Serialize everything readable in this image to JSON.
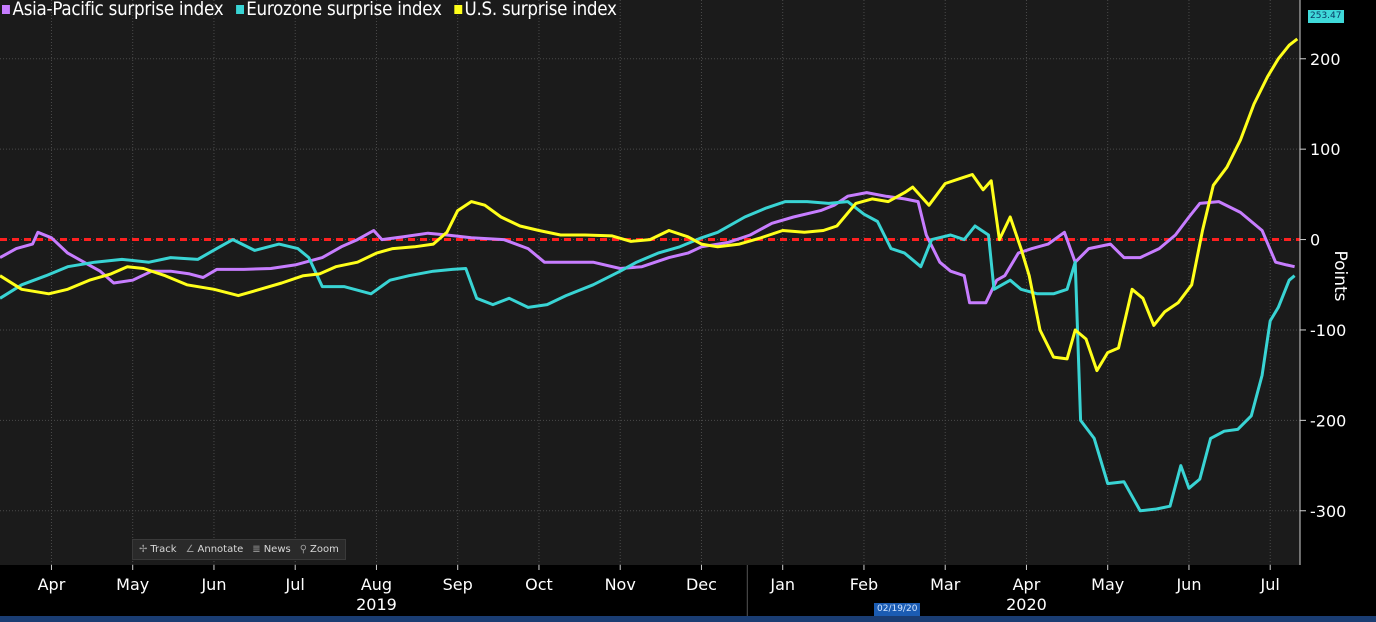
{
  "legend": [
    {
      "label": "Asia-Pacific surprise index",
      "color": "#c77dff"
    },
    {
      "label": "Eurozone surprise index",
      "color": "#39d4d4"
    },
    {
      "label": "U.S. surprise index",
      "color": "#ffff1a"
    }
  ],
  "toolbar": {
    "track": "Track",
    "annotate": "Annotate",
    "news": "News",
    "zoom": "Zoom"
  },
  "current_value_badge": "253.47",
  "date_badge": "02/19/20",
  "chart_data": {
    "type": "line",
    "ylabel": "Points",
    "ylim": [
      -360,
      265
    ],
    "yticks": [
      200,
      100,
      0,
      -100,
      -200,
      -300
    ],
    "ytick_labels": [
      "200",
      "100",
      "0",
      "-100",
      "-200",
      "-300"
    ],
    "x_range": [
      "2019-03-20",
      "2020-07-12"
    ],
    "month_ticks": [
      {
        "label": "Apr",
        "date": "2019-04-08"
      },
      {
        "label": "May",
        "date": "2019-05-08"
      },
      {
        "label": "Jun",
        "date": "2019-06-07"
      },
      {
        "label": "Jul",
        "date": "2019-07-07"
      },
      {
        "label": "Aug",
        "date": "2019-08-06"
      },
      {
        "label": "Sep",
        "date": "2019-09-05"
      },
      {
        "label": "Oct",
        "date": "2019-10-05"
      },
      {
        "label": "Nov",
        "date": "2019-11-04"
      },
      {
        "label": "Dec",
        "date": "2019-12-04"
      },
      {
        "label": "Jan",
        "date": "2020-01-03"
      },
      {
        "label": "Feb",
        "date": "2020-02-02"
      },
      {
        "label": "Mar",
        "date": "2020-03-03"
      },
      {
        "label": "Apr",
        "date": "2020-04-02"
      },
      {
        "label": "May",
        "date": "2020-05-02"
      },
      {
        "label": "Jun",
        "date": "2020-06-01"
      },
      {
        "label": "Jul",
        "date": "2020-07-01"
      }
    ],
    "year_labels": [
      {
        "label": "2019",
        "date": "2019-08-06"
      },
      {
        "label": "2020",
        "date": "2020-04-02"
      }
    ],
    "reference_line": {
      "y": 0,
      "color": "#ff2020",
      "style": "dashed"
    },
    "grid": true,
    "series": [
      {
        "name": "Asia-Pacific surprise index",
        "color": "#c77dff",
        "points": [
          [
            "2019-03-20",
            -20
          ],
          [
            "2019-03-26",
            -10
          ],
          [
            "2019-04-01",
            -5
          ],
          [
            "2019-04-03",
            8
          ],
          [
            "2019-04-08",
            2
          ],
          [
            "2019-04-14",
            -15
          ],
          [
            "2019-04-20",
            -25
          ],
          [
            "2019-04-26",
            -35
          ],
          [
            "2019-05-01",
            -48
          ],
          [
            "2019-05-08",
            -45
          ],
          [
            "2019-05-15",
            -35
          ],
          [
            "2019-05-22",
            -35
          ],
          [
            "2019-05-29",
            -38
          ],
          [
            "2019-06-03",
            -42
          ],
          [
            "2019-06-08",
            -33
          ],
          [
            "2019-06-18",
            -33
          ],
          [
            "2019-06-28",
            -32
          ],
          [
            "2019-07-07",
            -28
          ],
          [
            "2019-07-17",
            -20
          ],
          [
            "2019-07-24",
            -8
          ],
          [
            "2019-07-30",
            0
          ],
          [
            "2019-08-05",
            10
          ],
          [
            "2019-08-08",
            0
          ],
          [
            "2019-08-16",
            3
          ],
          [
            "2019-08-25",
            7
          ],
          [
            "2019-09-01",
            5
          ],
          [
            "2019-09-10",
            2
          ],
          [
            "2019-09-22",
            0
          ],
          [
            "2019-10-01",
            -10
          ],
          [
            "2019-10-07",
            -25
          ],
          [
            "2019-10-15",
            -25
          ],
          [
            "2019-10-25",
            -25
          ],
          [
            "2019-11-04",
            -32
          ],
          [
            "2019-11-12",
            -30
          ],
          [
            "2019-11-22",
            -20
          ],
          [
            "2019-11-29",
            -15
          ],
          [
            "2019-12-04",
            -8
          ],
          [
            "2019-12-14",
            -3
          ],
          [
            "2019-12-22",
            5
          ],
          [
            "2019-12-30",
            18
          ],
          [
            "2020-01-07",
            25
          ],
          [
            "2020-01-17",
            32
          ],
          [
            "2020-01-22",
            38
          ],
          [
            "2020-01-27",
            48
          ],
          [
            "2020-02-03",
            52
          ],
          [
            "2020-02-10",
            48
          ],
          [
            "2020-02-17",
            45
          ],
          [
            "2020-02-22",
            42
          ],
          [
            "2020-02-25",
            5
          ],
          [
            "2020-03-01",
            -25
          ],
          [
            "2020-03-05",
            -35
          ],
          [
            "2020-03-10",
            -40
          ],
          [
            "2020-03-12",
            -70
          ],
          [
            "2020-03-18",
            -70
          ],
          [
            "2020-03-22",
            -45
          ],
          [
            "2020-03-25",
            -40
          ],
          [
            "2020-03-30",
            -15
          ],
          [
            "2020-04-04",
            -10
          ],
          [
            "2020-04-10",
            -5
          ],
          [
            "2020-04-16",
            8
          ],
          [
            "2020-04-20",
            -25
          ],
          [
            "2020-04-25",
            -10
          ],
          [
            "2020-05-03",
            -5
          ],
          [
            "2020-05-08",
            -20
          ],
          [
            "2020-05-14",
            -20
          ],
          [
            "2020-05-21",
            -10
          ],
          [
            "2020-05-27",
            5
          ],
          [
            "2020-06-01",
            25
          ],
          [
            "2020-06-05",
            40
          ],
          [
            "2020-06-12",
            42
          ],
          [
            "2020-06-20",
            30
          ],
          [
            "2020-06-28",
            10
          ],
          [
            "2020-07-03",
            -25
          ],
          [
            "2020-07-07",
            -28
          ],
          [
            "2020-07-10",
            -30
          ]
        ]
      },
      {
        "name": "Eurozone surprise index",
        "color": "#39d4d4",
        "points": [
          [
            "2019-03-20",
            -65
          ],
          [
            "2019-03-28",
            -50
          ],
          [
            "2019-04-06",
            -40
          ],
          [
            "2019-04-14",
            -30
          ],
          [
            "2019-04-24",
            -25
          ],
          [
            "2019-05-04",
            -22
          ],
          [
            "2019-05-14",
            -25
          ],
          [
            "2019-05-22",
            -20
          ],
          [
            "2019-06-01",
            -22
          ],
          [
            "2019-06-08",
            -10
          ],
          [
            "2019-06-14",
            0
          ],
          [
            "2019-06-22",
            -12
          ],
          [
            "2019-07-01",
            -5
          ],
          [
            "2019-07-08",
            -10
          ],
          [
            "2019-07-12",
            -20
          ],
          [
            "2019-07-17",
            -52
          ],
          [
            "2019-07-25",
            -52
          ],
          [
            "2019-08-04",
            -60
          ],
          [
            "2019-08-11",
            -45
          ],
          [
            "2019-08-18",
            -40
          ],
          [
            "2019-08-27",
            -35
          ],
          [
            "2019-09-03",
            -33
          ],
          [
            "2019-09-08",
            -32
          ],
          [
            "2019-09-12",
            -65
          ],
          [
            "2019-09-18",
            -72
          ],
          [
            "2019-09-24",
            -65
          ],
          [
            "2019-10-01",
            -75
          ],
          [
            "2019-10-08",
            -72
          ],
          [
            "2019-10-15",
            -62
          ],
          [
            "2019-10-25",
            -50
          ],
          [
            "2019-11-04",
            -35
          ],
          [
            "2019-11-10",
            -25
          ],
          [
            "2019-11-18",
            -15
          ],
          [
            "2019-11-26",
            -8
          ],
          [
            "2019-12-04",
            2
          ],
          [
            "2019-12-10",
            8
          ],
          [
            "2019-12-20",
            25
          ],
          [
            "2019-12-28",
            35
          ],
          [
            "2020-01-04",
            42
          ],
          [
            "2020-01-12",
            42
          ],
          [
            "2020-01-20",
            40
          ],
          [
            "2020-01-27",
            42
          ],
          [
            "2020-02-02",
            28
          ],
          [
            "2020-02-07",
            20
          ],
          [
            "2020-02-12",
            -10
          ],
          [
            "2020-02-17",
            -15
          ],
          [
            "2020-02-23",
            -30
          ],
          [
            "2020-02-27",
            0
          ],
          [
            "2020-03-05",
            5
          ],
          [
            "2020-03-10",
            0
          ],
          [
            "2020-03-14",
            15
          ],
          [
            "2020-03-19",
            5
          ],
          [
            "2020-03-21",
            -55
          ],
          [
            "2020-03-27",
            -45
          ],
          [
            "2020-03-31",
            -55
          ],
          [
            "2020-04-06",
            -60
          ],
          [
            "2020-04-12",
            -60
          ],
          [
            "2020-04-17",
            -55
          ],
          [
            "2020-04-20",
            -25
          ],
          [
            "2020-04-22",
            -200
          ],
          [
            "2020-04-27",
            -220
          ],
          [
            "2020-05-02",
            -270
          ],
          [
            "2020-05-08",
            -268
          ],
          [
            "2020-05-14",
            -300
          ],
          [
            "2020-05-20",
            -298
          ],
          [
            "2020-05-25",
            -295
          ],
          [
            "2020-05-29",
            -250
          ],
          [
            "2020-06-01",
            -275
          ],
          [
            "2020-06-05",
            -265
          ],
          [
            "2020-06-09",
            -220
          ],
          [
            "2020-06-14",
            -212
          ],
          [
            "2020-06-19",
            -210
          ],
          [
            "2020-06-24",
            -195
          ],
          [
            "2020-06-28",
            -150
          ],
          [
            "2020-07-01",
            -90
          ],
          [
            "2020-07-04",
            -75
          ],
          [
            "2020-07-08",
            -45
          ],
          [
            "2020-07-10",
            -40
          ]
        ]
      },
      {
        "name": "U.S. surprise index",
        "color": "#ffff1a",
        "points": [
          [
            "2019-03-20",
            -40
          ],
          [
            "2019-03-28",
            -55
          ],
          [
            "2019-04-07",
            -60
          ],
          [
            "2019-04-14",
            -55
          ],
          [
            "2019-04-22",
            -45
          ],
          [
            "2019-04-30",
            -38
          ],
          [
            "2019-05-06",
            -30
          ],
          [
            "2019-05-12",
            -32
          ],
          [
            "2019-05-20",
            -40
          ],
          [
            "2019-05-28",
            -50
          ],
          [
            "2019-06-07",
            -55
          ],
          [
            "2019-06-16",
            -62
          ],
          [
            "2019-06-24",
            -55
          ],
          [
            "2019-07-02",
            -48
          ],
          [
            "2019-07-10",
            -40
          ],
          [
            "2019-07-16",
            -38
          ],
          [
            "2019-07-22",
            -30
          ],
          [
            "2019-07-30",
            -25
          ],
          [
            "2019-08-06",
            -15
          ],
          [
            "2019-08-12",
            -10
          ],
          [
            "2019-08-20",
            -8
          ],
          [
            "2019-08-27",
            -5
          ],
          [
            "2019-09-01",
            8
          ],
          [
            "2019-09-05",
            32
          ],
          [
            "2019-09-10",
            42
          ],
          [
            "2019-09-15",
            38
          ],
          [
            "2019-09-21",
            25
          ],
          [
            "2019-09-28",
            15
          ],
          [
            "2019-10-05",
            10
          ],
          [
            "2019-10-13",
            5
          ],
          [
            "2019-10-22",
            5
          ],
          [
            "2019-11-01",
            4
          ],
          [
            "2019-11-08",
            -2
          ],
          [
            "2019-11-15",
            0
          ],
          [
            "2019-11-22",
            10
          ],
          [
            "2019-11-29",
            3
          ],
          [
            "2019-12-04",
            -5
          ],
          [
            "2019-12-10",
            -8
          ],
          [
            "2019-12-18",
            -5
          ],
          [
            "2019-12-26",
            2
          ],
          [
            "2020-01-03",
            10
          ],
          [
            "2020-01-11",
            8
          ],
          [
            "2020-01-18",
            10
          ],
          [
            "2020-01-23",
            15
          ],
          [
            "2020-01-30",
            40
          ],
          [
            "2020-02-05",
            45
          ],
          [
            "2020-02-11",
            42
          ],
          [
            "2020-02-17",
            52
          ],
          [
            "2020-02-20",
            58
          ],
          [
            "2020-02-26",
            38
          ],
          [
            "2020-03-03",
            62
          ],
          [
            "2020-03-09",
            68
          ],
          [
            "2020-03-13",
            72
          ],
          [
            "2020-03-17",
            55
          ],
          [
            "2020-03-20",
            65
          ],
          [
            "2020-03-23",
            0
          ],
          [
            "2020-03-27",
            25
          ],
          [
            "2020-03-31",
            -10
          ],
          [
            "2020-04-03",
            -40
          ],
          [
            "2020-04-07",
            -100
          ],
          [
            "2020-04-12",
            -130
          ],
          [
            "2020-04-17",
            -132
          ],
          [
            "2020-04-20",
            -100
          ],
          [
            "2020-04-24",
            -110
          ],
          [
            "2020-04-28",
            -145
          ],
          [
            "2020-05-02",
            -125
          ],
          [
            "2020-05-06",
            -120
          ],
          [
            "2020-05-11",
            -55
          ],
          [
            "2020-05-15",
            -65
          ],
          [
            "2020-05-19",
            -95
          ],
          [
            "2020-05-23",
            -80
          ],
          [
            "2020-05-28",
            -70
          ],
          [
            "2020-06-02",
            -50
          ],
          [
            "2020-06-06",
            10
          ],
          [
            "2020-06-10",
            60
          ],
          [
            "2020-06-15",
            80
          ],
          [
            "2020-06-20",
            110
          ],
          [
            "2020-06-25",
            150
          ],
          [
            "2020-06-30",
            180
          ],
          [
            "2020-07-04",
            200
          ],
          [
            "2020-07-08",
            215
          ],
          [
            "2020-07-11",
            222
          ]
        ]
      }
    ]
  }
}
